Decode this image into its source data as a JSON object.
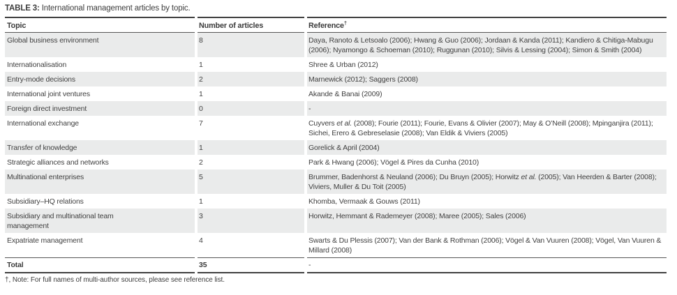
{
  "caption": {
    "label": "TABLE 3:",
    "text": "International management articles by topic."
  },
  "colors": {
    "text": "#414141",
    "row_stripe": "#eaebeb",
    "rule_heavy": "#3f3f3f",
    "rule_light": "#555555"
  },
  "table": {
    "headers": [
      {
        "label": "Topic"
      },
      {
        "label": "Number of articles"
      },
      {
        "label": "Reference",
        "dagger": "†"
      }
    ],
    "rows": [
      {
        "topic": "Global business environment",
        "count": "8",
        "reference": [
          {
            "text": "Daya, Ranoto & Letsoalo (2006); Hwang & Guo (2006); Jordaan & Kanda (2011); Kandiero & Chitiga-Mabugu (2006); Nyamongo & Schoeman (2010); Ruggunan (2010); Silvis & Lessing (2004); Simon & Smith (2004)"
          }
        ]
      },
      {
        "topic": "Internationalisation",
        "count": "1",
        "reference": [
          {
            "text": "Shree & Urban (2012)"
          }
        ]
      },
      {
        "topic": "Entry-mode decisions",
        "count": "2",
        "reference": [
          {
            "text": "Marnewick (2012); Saggers (2008)"
          }
        ]
      },
      {
        "topic": "International joint ventures",
        "count": "1",
        "reference": [
          {
            "text": "Akande & Banai (2009)"
          }
        ]
      },
      {
        "topic": "Foreign direct investment",
        "count": "0",
        "reference": [
          {
            "text": "-"
          }
        ]
      },
      {
        "topic": "International exchange",
        "count": "7",
        "reference": [
          {
            "text": "Cuyvers "
          },
          {
            "text": "et al.",
            "italic": true
          },
          {
            "text": " (2008); Fourie (2011); Fourie, Evans & Olivier (2007); May & O’Neill (2008); Mpinganjira (2011); Sichei, Erero & Gebreselasie (2008); Van Eldik & Viviers (2005)"
          }
        ]
      },
      {
        "topic": "Transfer of knowledge",
        "count": "1",
        "reference": [
          {
            "text": "Gorelick & April (2004)"
          }
        ]
      },
      {
        "topic": "Strategic alliances and networks",
        "count": "2",
        "reference": [
          {
            "text": "Park & Hwang (2006); Vögel & Pires da Cunha (2010)"
          }
        ]
      },
      {
        "topic": "Multinational enterprises",
        "count": "5",
        "reference": [
          {
            "text": "Brummer, Badenhorst & Neuland (2006); Du Bruyn (2005); Horwitz "
          },
          {
            "text": "et al.",
            "italic": true
          },
          {
            "text": " (2005); Van Heerden & Barter (2008); Viviers, Muller & Du Toit (2005)"
          }
        ]
      },
      {
        "topic": "Subsidiary–HQ relations",
        "count": "1",
        "reference": [
          {
            "text": "Khomba, Vermaak & Gouws (2011)"
          }
        ]
      },
      {
        "topic": "Subsidiary and multinational team management",
        "count": "3",
        "reference": [
          {
            "text": "Horwitz, Hemmant & Rademeyer (2008); Maree (2005); Sales (2006)"
          }
        ]
      },
      {
        "topic": "Expatriate management",
        "count": "4",
        "reference": [
          {
            "text": "Swarts & Du Plessis (2007); Van der Bank & Rothman (2006); Vögel & Van Vuuren (2008); Vögel, Van Vuuren & Millard (2008)"
          }
        ]
      }
    ],
    "total": {
      "topic": "Total",
      "count": "35",
      "reference": "-"
    }
  },
  "footnote": "†, Note: For full names of multi-author sources, please see reference list."
}
